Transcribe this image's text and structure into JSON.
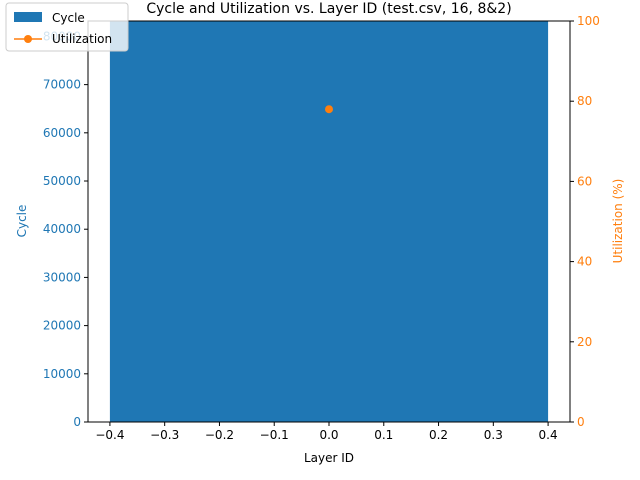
{
  "chart_data": {
    "type": "bar",
    "title": "Cycle and Utilization vs. Layer ID (test.csv, 16, 8&2)",
    "xlabel": "Layer ID",
    "ylabel": "Cycle",
    "y2label": "Utilization (%)",
    "xlim": [
      -0.44,
      0.44
    ],
    "ylim": [
      0,
      83200
    ],
    "y2lim": [
      0,
      100
    ],
    "x_ticks": [
      "−0.4",
      "−0.3",
      "−0.2",
      "−0.1",
      "0.0",
      "0.1",
      "0.2",
      "0.3",
      "0.4"
    ],
    "x_tick_values": [
      -0.4,
      -0.3,
      -0.2,
      -0.1,
      0.0,
      0.1,
      0.2,
      0.3,
      0.4
    ],
    "y_ticks": [
      "0",
      "10000",
      "20000",
      "30000",
      "40000",
      "50000",
      "60000",
      "70000",
      "80000"
    ],
    "y_tick_values": [
      0,
      10000,
      20000,
      30000,
      40000,
      50000,
      60000,
      70000,
      80000
    ],
    "y2_ticks": [
      "0",
      "20",
      "40",
      "60",
      "80",
      "100"
    ],
    "y2_tick_values": [
      0,
      20,
      40,
      60,
      80,
      100
    ],
    "grid": false,
    "legend_position": "top-left",
    "series": [
      {
        "name": "Cycle",
        "kind": "bar",
        "axis": "left",
        "color": "#1f77b4",
        "x": [
          0
        ],
        "values": [
          83200
        ],
        "bar_width": 0.8
      },
      {
        "name": "Utilization",
        "kind": "line",
        "axis": "right",
        "color": "#ff7f0e",
        "x": [
          0
        ],
        "values": [
          78
        ]
      }
    ],
    "left_axis_color": "#1f77b4",
    "right_axis_color": "#ff7f0e"
  }
}
